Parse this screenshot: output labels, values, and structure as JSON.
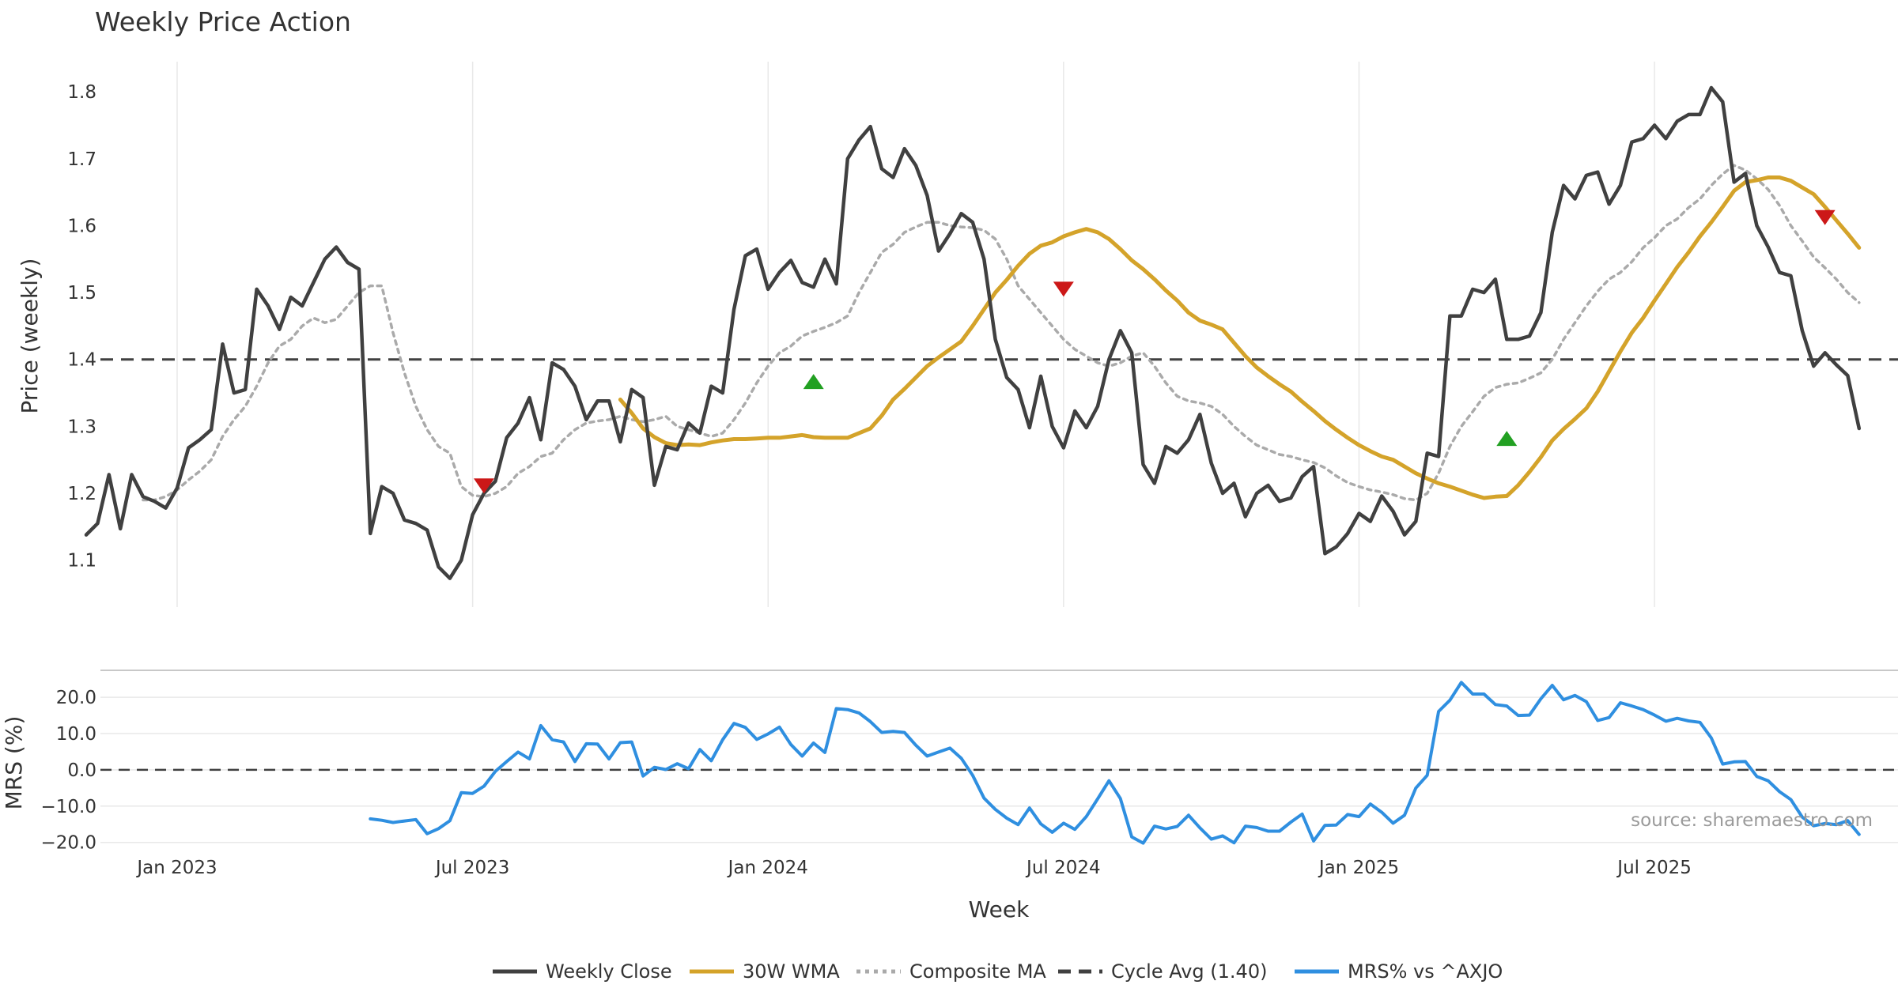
{
  "chart_data": {
    "type": "line",
    "title": "Weekly Price Action",
    "x_ticks": [
      "Jan 2023",
      "Jul 2023",
      "Jan 2024",
      "Jul 2024",
      "Jan 2025",
      "Jul 2025"
    ],
    "xlabel": "Week",
    "source": "source: sharemaestro.com",
    "price_panel": {
      "ylabel": "Price (weekly)",
      "y_ticks": [
        "1.1",
        "1.2",
        "1.3",
        "1.4",
        "1.5",
        "1.6",
        "1.7",
        "1.8"
      ],
      "ylim": [
        1.03,
        1.845
      ],
      "x_range": [
        -8,
        145
      ],
      "cycle_avg": 1.4,
      "weekly_close": [
        1.138,
        1.155,
        1.228,
        1.147,
        1.228,
        1.195,
        1.188,
        1.178,
        1.208,
        1.268,
        1.28,
        1.295,
        1.423,
        1.35,
        1.355,
        1.505,
        1.48,
        1.445,
        1.493,
        1.48,
        1.515,
        1.55,
        1.568,
        1.545,
        1.535,
        1.14,
        1.21,
        1.2,
        1.16,
        1.155,
        1.145,
        1.09,
        1.073,
        1.1,
        1.168,
        1.2,
        1.218,
        1.283,
        1.305,
        1.343,
        1.28,
        1.395,
        1.385,
        1.36,
        1.31,
        1.338,
        1.338,
        1.277,
        1.355,
        1.343,
        1.212,
        1.27,
        1.265,
        1.305,
        1.29,
        1.36,
        1.35,
        1.475,
        1.555,
        1.565,
        1.505,
        1.53,
        1.548,
        1.515,
        1.508,
        1.55,
        1.513,
        1.7,
        1.728,
        1.748,
        1.685,
        1.672,
        1.715,
        1.69,
        1.645,
        1.562,
        1.588,
        1.618,
        1.605,
        1.55,
        1.43,
        1.373,
        1.355,
        1.298,
        1.375,
        1.3,
        1.268,
        1.323,
        1.298,
        1.33,
        1.4,
        1.443,
        1.41,
        1.243,
        1.215,
        1.27,
        1.26,
        1.28,
        1.318,
        1.245,
        1.2,
        1.215,
        1.165,
        1.2,
        1.212,
        1.188,
        1.193,
        1.225,
        1.24,
        1.11,
        1.12,
        1.14,
        1.17,
        1.158,
        1.196,
        1.173,
        1.138,
        1.158,
        1.26,
        1.255,
        1.465,
        1.465,
        1.505,
        1.5,
        1.52,
        1.43,
        1.43,
        1.435,
        1.47,
        1.59,
        1.66,
        1.64,
        1.675,
        1.68,
        1.632,
        1.66,
        1.725,
        1.73,
        1.75,
        1.73,
        1.756,
        1.766,
        1.766,
        1.806,
        1.785,
        1.665,
        1.678,
        1.6,
        1.568,
        1.53,
        1.525,
        1.443,
        1.39,
        1.41,
        1.392,
        1.376,
        1.297
      ],
      "wma_30w": [
        1.34,
        1.32,
        1.297,
        1.284,
        1.275,
        1.272,
        1.273,
        1.272,
        1.276,
        1.279,
        1.281,
        1.281,
        1.282,
        1.283,
        1.283,
        1.285,
        1.287,
        1.284,
        1.283,
        1.283,
        1.283,
        1.29,
        1.297,
        1.316,
        1.34,
        1.356,
        1.373,
        1.39,
        1.403,
        1.415,
        1.427,
        1.45,
        1.475,
        1.5,
        1.519,
        1.54,
        1.558,
        1.57,
        1.575,
        1.584,
        1.59,
        1.595,
        1.59,
        1.58,
        1.565,
        1.548,
        1.535,
        1.52,
        1.503,
        1.488,
        1.47,
        1.458,
        1.452,
        1.445,
        1.425,
        1.405,
        1.388,
        1.375,
        1.363,
        1.352,
        1.337,
        1.323,
        1.308,
        1.295,
        1.283,
        1.272,
        1.263,
        1.255,
        1.25,
        1.24,
        1.23,
        1.222,
        1.215,
        1.21,
        1.204,
        1.198,
        1.193,
        1.195,
        1.196,
        1.212,
        1.232,
        1.254,
        1.279,
        1.296,
        1.311,
        1.327,
        1.352,
        1.382,
        1.412,
        1.44,
        1.462,
        1.488,
        1.513,
        1.538,
        1.56,
        1.584,
        1.605,
        1.628,
        1.652,
        1.665,
        1.668,
        1.672,
        1.672,
        1.667,
        1.657,
        1.647,
        1.628,
        1.608,
        1.588,
        1.567
      ],
      "composite_ma": [
        1.19,
        1.19,
        1.195,
        1.205,
        1.22,
        1.233,
        1.25,
        1.285,
        1.31,
        1.33,
        1.36,
        1.395,
        1.42,
        1.43,
        1.45,
        1.462,
        1.455,
        1.46,
        1.48,
        1.5,
        1.51,
        1.51,
        1.44,
        1.38,
        1.33,
        1.295,
        1.27,
        1.26,
        1.21,
        1.197,
        1.195,
        1.2,
        1.21,
        1.23,
        1.24,
        1.255,
        1.26,
        1.28,
        1.295,
        1.305,
        1.308,
        1.31,
        1.315,
        1.31,
        1.307,
        1.31,
        1.315,
        1.3,
        1.295,
        1.29,
        1.285,
        1.29,
        1.31,
        1.335,
        1.365,
        1.39,
        1.41,
        1.42,
        1.435,
        1.442,
        1.448,
        1.455,
        1.465,
        1.5,
        1.53,
        1.56,
        1.572,
        1.59,
        1.598,
        1.605,
        1.605,
        1.6,
        1.598,
        1.597,
        1.593,
        1.58,
        1.55,
        1.51,
        1.49,
        1.47,
        1.45,
        1.43,
        1.415,
        1.405,
        1.395,
        1.39,
        1.395,
        1.405,
        1.41,
        1.39,
        1.365,
        1.345,
        1.338,
        1.335,
        1.33,
        1.318,
        1.3,
        1.285,
        1.272,
        1.265,
        1.258,
        1.255,
        1.25,
        1.246,
        1.238,
        1.226,
        1.216,
        1.21,
        1.205,
        1.202,
        1.198,
        1.192,
        1.19,
        1.2,
        1.23,
        1.27,
        1.3,
        1.322,
        1.345,
        1.358,
        1.363,
        1.365,
        1.372,
        1.38,
        1.4,
        1.43,
        1.455,
        1.48,
        1.502,
        1.52,
        1.53,
        1.546,
        1.567,
        1.582,
        1.6,
        1.61,
        1.627,
        1.64,
        1.66,
        1.677,
        1.69,
        1.683,
        1.67,
        1.654,
        1.63,
        1.6,
        1.577,
        1.553,
        1.537,
        1.52,
        1.5,
        1.485
      ],
      "signals": [
        {
          "week": 27,
          "price": 1.211,
          "kind": "sell"
        },
        {
          "week": 56,
          "price": 1.367,
          "kind": "buy"
        },
        {
          "week": 78,
          "price": 1.505,
          "kind": "sell"
        },
        {
          "week": 117,
          "price": 1.282,
          "kind": "buy"
        },
        {
          "week": 145,
          "price": 1.612,
          "kind": "sell"
        }
      ]
    },
    "mrs_panel": {
      "ylabel": "MRS (%)",
      "y_ticks": [
        "20.0",
        "10.0",
        "0.0",
        "−10.0",
        "−20.0"
      ],
      "ylim": [
        -20.5,
        27
      ],
      "values": [
        -13.5,
        -13.9,
        -14.5,
        -14.1,
        -13.7,
        -17.6,
        -16.2,
        -14.0,
        -6.3,
        -6.5,
        -4.5,
        -0.4,
        2.3,
        4.9,
        3.0,
        12.2,
        8.3,
        7.7,
        2.3,
        7.2,
        7.1,
        3.0,
        7.5,
        7.7,
        -1.7,
        0.7,
        0.1,
        1.7,
        0.3,
        5.6,
        2.5,
        8.3,
        12.8,
        11.7,
        8.4,
        9.9,
        11.8,
        7.0,
        3.8,
        7.4,
        4.8,
        16.9,
        16.6,
        15.7,
        13.3,
        10.3,
        10.6,
        10.3,
        6.8,
        3.8,
        4.9,
        6.0,
        3.2,
        -1.5,
        -7.8,
        -10.9,
        -13.3,
        -15.1,
        -10.5,
        -14.9,
        -17.2,
        -14.7,
        -16.4,
        -12.9,
        -8.0,
        -3.0,
        -7.9,
        -18.5,
        -20.2,
        -15.5,
        -16.3,
        -15.6,
        -12.5,
        -16.0,
        -19.1,
        -18.2,
        -20.1,
        -15.5,
        -15.9,
        -16.9,
        -16.9,
        -14.4,
        -12.2,
        -19.6,
        -15.3,
        -15.2,
        -12.3,
        -12.9,
        -9.4,
        -11.7,
        -14.7,
        -12.5,
        -5.0,
        -1.5,
        16.1,
        19.2,
        24.1,
        20.9,
        20.9,
        18.0,
        17.6,
        15.0,
        15.1,
        19.6,
        23.3,
        19.3,
        20.5,
        18.8,
        13.6,
        14.4,
        18.5,
        17.6,
        16.6,
        15.1,
        13.4,
        14.2,
        13.5,
        13.1,
        8.8,
        1.6,
        2.2,
        2.3,
        -1.8,
        -3.0,
        -6.0,
        -8.2,
        -13.0,
        -15.4,
        -14.8,
        -15.1,
        -14.0,
        -17.8
      ]
    },
    "legend": [
      {
        "label": "Weekly Close",
        "color": "#404040",
        "style": "solid"
      },
      {
        "label": "30W WMA",
        "color": "#d4a32a",
        "style": "solid"
      },
      {
        "label": "Composite MA",
        "color": "#aaaaaa",
        "style": "dotted"
      },
      {
        "label": "Cycle Avg (1.40)",
        "color": "#404040",
        "style": "dashed"
      },
      {
        "label": "MRS% vs ^AXJO",
        "color": "#2f8fe0",
        "style": "solid"
      }
    ],
    "colors": {
      "close": "#404040",
      "wma": "#d4a32a",
      "composite": "#aaaaaa",
      "cycle": "#404040",
      "mrs": "#2f8fe0",
      "buy": "#22a022",
      "sell": "#cc1818",
      "grid": "#e8e8e8"
    }
  }
}
